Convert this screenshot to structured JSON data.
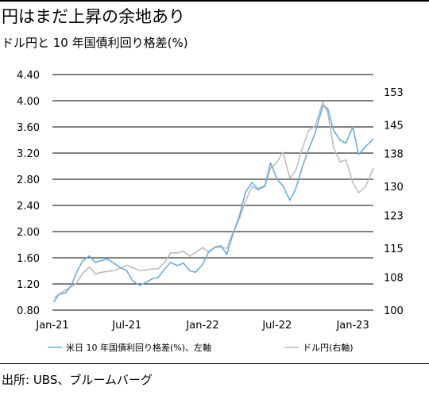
{
  "title": "円はまだ上昇の余地あり",
  "subtitle": "ドル円と 10 年国債利回り格差(%)",
  "source": "出所: UBS、ブルームバーグ",
  "colors": {
    "blue": "#6aaee0",
    "gray": "#bdbdbd",
    "grid": "#000000"
  },
  "chart_data": {
    "type": "line",
    "x_ticks": [
      "Jan-21",
      "Jul-21",
      "Jan-22",
      "Jul-22",
      "Jan-23"
    ],
    "xlim": [
      "2021-01-01",
      "2023-02-20"
    ],
    "y_left": {
      "ticks": [
        "4.40",
        "4.00",
        "3.60",
        "3.20",
        "2.80",
        "2.40",
        "2.00",
        "1.60",
        "1.20",
        "0.80"
      ],
      "ylim": [
        0.8,
        4.4
      ]
    },
    "y_right": {
      "ticks": [
        "153",
        "145",
        "138",
        "130",
        "123",
        "115",
        "108",
        "100"
      ],
      "ylim": [
        100,
        157.2
      ]
    },
    "grid": "horizontal",
    "legend_position": "bottom",
    "series": [
      {
        "name": "米日 10 年国債利回り格差(%)、左軸",
        "axis": "left",
        "color": "#6aaee0",
        "points": [
          [
            "2021-01-04",
            0.92
          ],
          [
            "2021-01-18",
            1.05
          ],
          [
            "2021-02-01",
            1.06
          ],
          [
            "2021-02-15",
            1.17
          ],
          [
            "2021-03-01",
            1.38
          ],
          [
            "2021-03-15",
            1.55
          ],
          [
            "2021-04-01",
            1.63
          ],
          [
            "2021-04-15",
            1.53
          ],
          [
            "2021-05-01",
            1.56
          ],
          [
            "2021-05-15",
            1.58
          ],
          [
            "2021-06-01",
            1.51
          ],
          [
            "2021-06-15",
            1.45
          ],
          [
            "2021-07-01",
            1.4
          ],
          [
            "2021-07-15",
            1.25
          ],
          [
            "2021-08-01",
            1.18
          ],
          [
            "2021-08-15",
            1.22
          ],
          [
            "2021-09-01",
            1.28
          ],
          [
            "2021-09-15",
            1.3
          ],
          [
            "2021-10-01",
            1.43
          ],
          [
            "2021-10-15",
            1.53
          ],
          [
            "2021-11-01",
            1.48
          ],
          [
            "2021-11-15",
            1.52
          ],
          [
            "2021-12-01",
            1.4
          ],
          [
            "2021-12-15",
            1.38
          ],
          [
            "2022-01-01",
            1.5
          ],
          [
            "2022-01-15",
            1.68
          ],
          [
            "2022-02-01",
            1.77
          ],
          [
            "2022-02-15",
            1.78
          ],
          [
            "2022-03-01",
            1.65
          ],
          [
            "2022-03-15",
            1.95
          ],
          [
            "2022-04-01",
            2.25
          ],
          [
            "2022-04-15",
            2.6
          ],
          [
            "2022-05-01",
            2.75
          ],
          [
            "2022-05-15",
            2.65
          ],
          [
            "2022-06-01",
            2.7
          ],
          [
            "2022-06-15",
            3.05
          ],
          [
            "2022-07-01",
            2.8
          ],
          [
            "2022-07-15",
            2.7
          ],
          [
            "2022-08-01",
            2.48
          ],
          [
            "2022-08-15",
            2.65
          ],
          [
            "2022-09-01",
            3.0
          ],
          [
            "2022-09-15",
            3.25
          ],
          [
            "2022-10-01",
            3.5
          ],
          [
            "2022-10-20",
            3.92
          ],
          [
            "2022-11-01",
            3.88
          ],
          [
            "2022-11-15",
            3.55
          ],
          [
            "2022-12-01",
            3.4
          ],
          [
            "2022-12-15",
            3.35
          ],
          [
            "2023-01-01",
            3.6
          ],
          [
            "2023-01-15",
            3.18
          ],
          [
            "2023-02-01",
            3.3
          ],
          [
            "2023-02-20",
            3.42
          ]
        ]
      },
      {
        "name": "ドル円(右軸)",
        "axis": "right",
        "color": "#bdbdbd",
        "points": [
          [
            "2021-01-04",
            102.9
          ],
          [
            "2021-01-18",
            103.9
          ],
          [
            "2021-02-01",
            104.8
          ],
          [
            "2021-02-15",
            105.6
          ],
          [
            "2021-03-01",
            106.6
          ],
          [
            "2021-03-15",
            108.9
          ],
          [
            "2021-04-01",
            110.5
          ],
          [
            "2021-04-15",
            108.8
          ],
          [
            "2021-05-01",
            109.2
          ],
          [
            "2021-05-15",
            109.4
          ],
          [
            "2021-06-01",
            109.6
          ],
          [
            "2021-06-15",
            110.2
          ],
          [
            "2021-07-01",
            110.9
          ],
          [
            "2021-07-15",
            110.3
          ],
          [
            "2021-08-01",
            109.6
          ],
          [
            "2021-08-15",
            109.7
          ],
          [
            "2021-09-01",
            110.0
          ],
          [
            "2021-09-15",
            110.0
          ],
          [
            "2021-10-01",
            111.6
          ],
          [
            "2021-10-15",
            113.9
          ],
          [
            "2021-11-01",
            113.9
          ],
          [
            "2021-11-15",
            114.3
          ],
          [
            "2021-12-01",
            113.1
          ],
          [
            "2021-12-15",
            114.0
          ],
          [
            "2022-01-01",
            115.2
          ],
          [
            "2022-01-15",
            114.2
          ],
          [
            "2022-02-01",
            115.2
          ],
          [
            "2022-02-15",
            115.3
          ],
          [
            "2022-03-01",
            115.0
          ],
          [
            "2022-03-15",
            118.7
          ],
          [
            "2022-04-01",
            122.4
          ],
          [
            "2022-04-15",
            126.4
          ],
          [
            "2022-05-01",
            130.0
          ],
          [
            "2022-05-15",
            129.2
          ],
          [
            "2022-06-01",
            130.0
          ],
          [
            "2022-06-15",
            134.5
          ],
          [
            "2022-07-01",
            135.9
          ],
          [
            "2022-07-15",
            138.4
          ],
          [
            "2022-08-01",
            132.0
          ],
          [
            "2022-08-15",
            133.8
          ],
          [
            "2022-09-01",
            139.5
          ],
          [
            "2022-09-15",
            143.5
          ],
          [
            "2022-10-01",
            144.7
          ],
          [
            "2022-10-20",
            150.5
          ],
          [
            "2022-11-01",
            148.0
          ],
          [
            "2022-11-15",
            139.5
          ],
          [
            "2022-12-01",
            136.0
          ],
          [
            "2022-12-15",
            136.5
          ],
          [
            "2023-01-01",
            131.0
          ],
          [
            "2023-01-15",
            128.5
          ],
          [
            "2023-02-01",
            130.0
          ],
          [
            "2023-02-20",
            134.5
          ]
        ]
      }
    ]
  }
}
